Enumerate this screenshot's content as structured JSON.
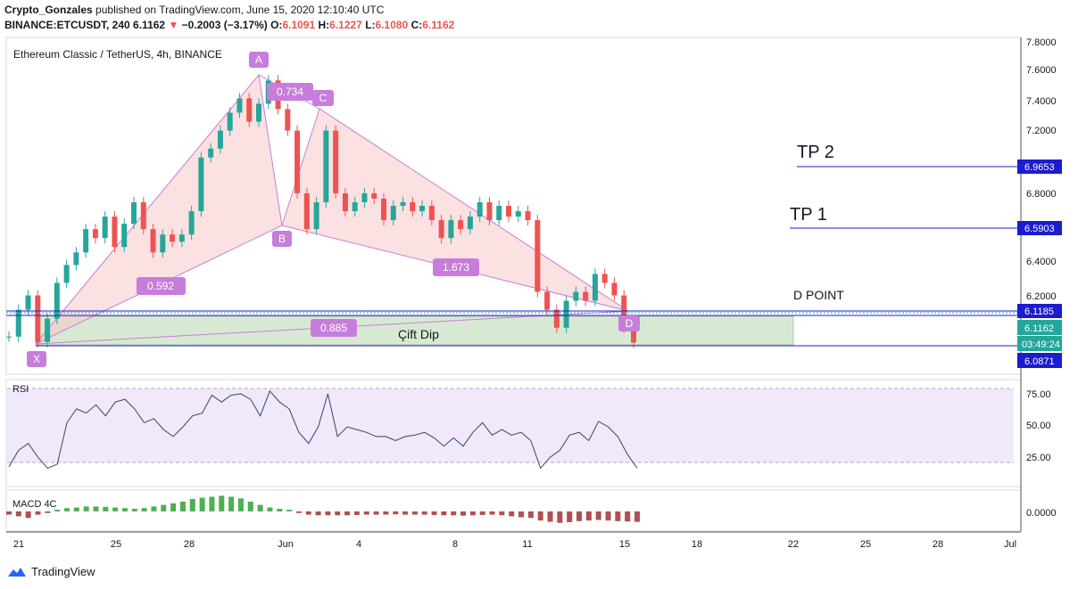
{
  "header": {
    "author": "Crypto_Gonzales",
    "published_text": "published on TradingView.com, June 15, 2020 12:10:40 UTC",
    "symbol": "BINANCE:ETCUSDT, 240",
    "last": "6.1162",
    "change_arrow": "▼",
    "change": "−0.2003 (−3.17%)",
    "o_label": "O:",
    "o": "6.1091",
    "h_label": "H:",
    "h": "6.1227",
    "l_label": "L:",
    "l": "6.1080",
    "c_label": "C:",
    "c": "6.1162"
  },
  "footer": {
    "brand": "TradingView"
  },
  "chart_data": [
    {
      "type": "candlestick",
      "title": "Ethereum Classic / TetherUS, 4h, BINANCE",
      "y_axis_ticks": [
        "7.8000",
        "7.6000",
        "7.4000",
        "7.2000",
        "6.8000",
        "6.4000",
        "6.2000"
      ],
      "ylim": [
        5.94,
        7.82
      ],
      "x_axis_ticks": [
        "21",
        "25",
        "28",
        "Jun",
        "4",
        "8",
        "11",
        "15",
        "18",
        "22",
        "25",
        "28",
        "Jul"
      ],
      "x_start": "2020-05-21",
      "close_series": [
        6.15,
        6.3,
        6.38,
        6.12,
        6.25,
        6.45,
        6.55,
        6.62,
        6.75,
        6.7,
        6.82,
        6.65,
        6.78,
        6.9,
        6.75,
        6.62,
        6.72,
        6.68,
        6.72,
        6.85,
        7.15,
        7.2,
        7.3,
        7.4,
        7.48,
        7.35,
        7.45,
        7.58,
        7.42,
        7.3,
        6.95,
        6.75,
        6.9,
        7.3,
        6.95,
        6.85,
        6.9,
        6.95,
        6.92,
        6.8,
        6.88,
        6.9,
        6.85,
        6.88,
        6.8,
        6.7,
        6.8,
        6.75,
        6.82,
        6.9,
        6.8,
        6.88,
        6.82,
        6.85,
        6.8,
        6.4,
        6.3,
        6.2,
        6.35,
        6.4,
        6.35,
        6.5,
        6.45,
        6.38,
        6.2,
        6.1162
      ],
      "price_labels": [
        {
          "text": "6.9653",
          "value": 6.9653,
          "line": "TP 2"
        },
        {
          "text": "6.5903",
          "value": 6.5903,
          "line": "TP 1"
        },
        {
          "text": "6.1185",
          "value": 6.1185,
          "line": "D POINT"
        },
        {
          "text": "6.1162",
          "value": 6.1162,
          "line": "last"
        },
        {
          "text": "03:49:24",
          "line": "countdown"
        },
        {
          "text": "6.0871",
          "value": 6.0871,
          "line": "zone bottom"
        }
      ],
      "annotations": {
        "pattern_points": [
          "X",
          "A",
          "B",
          "C",
          "D"
        ],
        "ratios": [
          "0.734",
          "0.592",
          "1.673",
          "0.885"
        ],
        "level_labels": [
          "TP 2",
          "TP 1",
          "D POINT"
        ],
        "zone_label": "Çift Dip"
      },
      "colors": {
        "up": "#26a69a",
        "down": "#ef5350",
        "pattern": "#c77ddb",
        "level": "#1c1ccf"
      }
    },
    {
      "type": "line",
      "title": "RSI",
      "y_axis_ticks": [
        "75.00",
        "50.00",
        "25.00"
      ],
      "ylim": [
        10,
        85
      ],
      "bands": [
        80,
        20
      ],
      "values": [
        23,
        35,
        40,
        30,
        22,
        25,
        55,
        65,
        62,
        68,
        60,
        70,
        72,
        65,
        55,
        58,
        50,
        45,
        52,
        60,
        62,
        75,
        70,
        75,
        76,
        72,
        60,
        78,
        70,
        65,
        48,
        40,
        52,
        76,
        45,
        52,
        50,
        48,
        45,
        45,
        42,
        45,
        46,
        48,
        44,
        38,
        44,
        38,
        48,
        55,
        46,
        50,
        46,
        48,
        42,
        22,
        30,
        35,
        46,
        48,
        42,
        56,
        52,
        45,
        32,
        22
      ]
    },
    {
      "type": "bar",
      "title": "MACD 4C",
      "y_axis_ticks": [
        "0.0000"
      ],
      "ylim": [
        -0.055,
        0.06
      ],
      "values": [
        -0.01,
        -0.015,
        -0.02,
        -0.01,
        -0.005,
        0.005,
        0.01,
        0.012,
        0.015,
        0.015,
        0.014,
        0.012,
        0.01,
        0.008,
        0.01,
        0.015,
        0.02,
        0.025,
        0.03,
        0.038,
        0.042,
        0.045,
        0.048,
        0.045,
        0.04,
        0.03,
        0.02,
        0.012,
        0.008,
        0.005,
        -0.005,
        -0.01,
        -0.012,
        -0.012,
        -0.012,
        -0.012,
        -0.011,
        -0.01,
        -0.01,
        -0.01,
        -0.009,
        -0.01,
        -0.01,
        -0.01,
        -0.011,
        -0.012,
        -0.012,
        -0.013,
        -0.012,
        -0.011,
        -0.01,
        -0.012,
        -0.015,
        -0.018,
        -0.02,
        -0.028,
        -0.032,
        -0.035,
        -0.033,
        -0.03,
        -0.028,
        -0.026,
        -0.028,
        -0.03,
        -0.031,
        -0.032
      ],
      "colors": {
        "pos": "#4caf50",
        "neg": "#b05050"
      }
    }
  ]
}
